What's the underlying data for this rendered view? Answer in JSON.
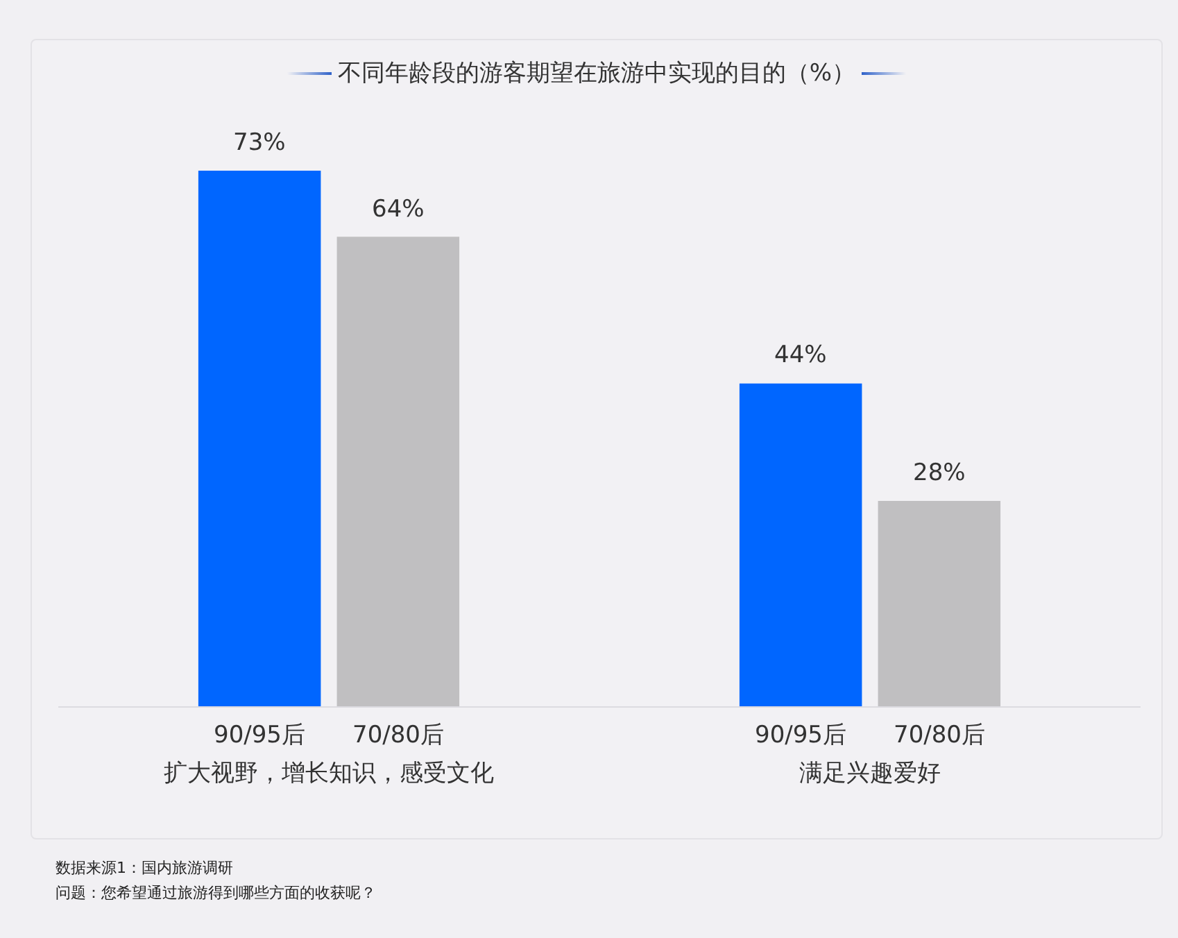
{
  "chart_data": {
    "type": "bar",
    "title": "不同年龄段的游客期望在旅游中实现的目的（%）",
    "categories": [
      "扩大视野，增长知识，感受文化",
      "满足兴趣爱好"
    ],
    "series": [
      {
        "name": "90/95后",
        "color": "#0066ff",
        "values": [
          73,
          44
        ],
        "value_labels": [
          "73%",
          "44%"
        ]
      },
      {
        "name": "70/80后",
        "color": "#c0bfc1",
        "values": [
          64,
          28
        ],
        "value_labels": [
          "64%",
          "28%"
        ]
      }
    ],
    "annotations": [
      "数据来源1：国内旅游调研",
      "问题：您希望通过旅游得到哪些方面的收获呢？"
    ]
  }
}
